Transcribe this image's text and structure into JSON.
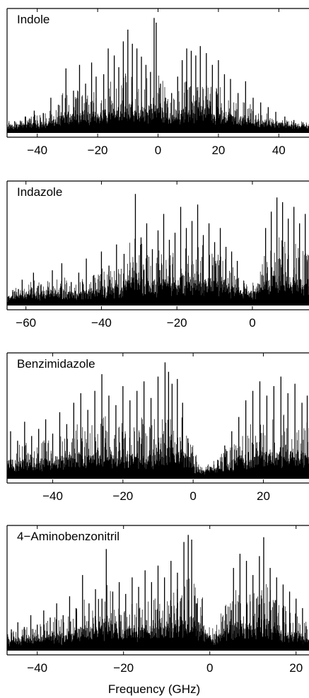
{
  "chart_data": [
    {
      "type": "line",
      "title": "Indole",
      "xlim": [
        -50,
        50
      ],
      "xticks": [
        -40,
        -20,
        0,
        20,
        40
      ],
      "xtick_labels": [
        "−40",
        "−20",
        "0",
        "20",
        "40"
      ],
      "xlabel": "",
      "grid": false,
      "peaks": [
        {
          "x": -47.5,
          "y": 0.1
        },
        {
          "x": -44,
          "y": 0.14
        },
        {
          "x": -41,
          "y": 0.19
        },
        {
          "x": -38,
          "y": 0.17
        },
        {
          "x": -35.5,
          "y": 0.3
        },
        {
          "x": -33,
          "y": 0.24
        },
        {
          "x": -30.5,
          "y": 0.55
        },
        {
          "x": -28,
          "y": 0.36
        },
        {
          "x": -26,
          "y": 0.58
        },
        {
          "x": -24,
          "y": 0.42
        },
        {
          "x": -22,
          "y": 0.6
        },
        {
          "x": -20.5,
          "y": 0.48
        },
        {
          "x": -18,
          "y": 0.5
        },
        {
          "x": -16.5,
          "y": 0.72
        },
        {
          "x": -14.5,
          "y": 0.66
        },
        {
          "x": -13,
          "y": 0.56
        },
        {
          "x": -11.5,
          "y": 0.78
        },
        {
          "x": -10,
          "y": 0.88
        },
        {
          "x": -8.5,
          "y": 0.76
        },
        {
          "x": -7,
          "y": 0.72
        },
        {
          "x": -5.5,
          "y": 0.65
        },
        {
          "x": -4,
          "y": 0.58
        },
        {
          "x": -2.5,
          "y": 0.52
        },
        {
          "x": -1.3,
          "y": 0.98
        },
        {
          "x": -0.6,
          "y": 0.94
        },
        {
          "x": 0.8,
          "y": 0.42
        },
        {
          "x": 2.5,
          "y": 0.3
        },
        {
          "x": 4.5,
          "y": 0.34
        },
        {
          "x": 6.5,
          "y": 0.48
        },
        {
          "x": 8,
          "y": 0.62
        },
        {
          "x": 9.5,
          "y": 0.72
        },
        {
          "x": 11,
          "y": 0.7
        },
        {
          "x": 12.5,
          "y": 0.66
        },
        {
          "x": 14,
          "y": 0.74
        },
        {
          "x": 16,
          "y": 0.68
        },
        {
          "x": 18,
          "y": 0.58
        },
        {
          "x": 20,
          "y": 0.62
        },
        {
          "x": 22,
          "y": 0.5
        },
        {
          "x": 24,
          "y": 0.46
        },
        {
          "x": 26.5,
          "y": 0.34
        },
        {
          "x": 29,
          "y": 0.44
        },
        {
          "x": 31.5,
          "y": 0.3
        },
        {
          "x": 34,
          "y": 0.26
        },
        {
          "x": 36.5,
          "y": 0.22
        },
        {
          "x": 39,
          "y": 0.18
        },
        {
          "x": 42,
          "y": 0.14
        },
        {
          "x": 45,
          "y": 0.11
        },
        {
          "x": 48,
          "y": 0.09
        }
      ]
    },
    {
      "type": "line",
      "title": "Indazole",
      "xlim": [
        -65,
        15
      ],
      "xticks": [
        -60,
        -40,
        -20,
        0
      ],
      "xtick_labels": [
        "−60",
        "−40",
        "−20",
        "0"
      ],
      "xlabel": "",
      "grid": false,
      "peaks": [
        {
          "x": -63,
          "y": 0.12
        },
        {
          "x": -61,
          "y": 0.22
        },
        {
          "x": -58,
          "y": 0.28
        },
        {
          "x": -56,
          "y": 0.18
        },
        {
          "x": -53,
          "y": 0.3
        },
        {
          "x": -50.5,
          "y": 0.36
        },
        {
          "x": -48,
          "y": 0.2
        },
        {
          "x": -46,
          "y": 0.28
        },
        {
          "x": -44,
          "y": 0.4
        },
        {
          "x": -42,
          "y": 0.26
        },
        {
          "x": -40,
          "y": 0.46
        },
        {
          "x": -38,
          "y": 0.34
        },
        {
          "x": -36,
          "y": 0.52
        },
        {
          "x": -34,
          "y": 0.44
        },
        {
          "x": -32.5,
          "y": 0.3
        },
        {
          "x": -31,
          "y": 0.95
        },
        {
          "x": -29.5,
          "y": 0.58
        },
        {
          "x": -28,
          "y": 0.7
        },
        {
          "x": -26.5,
          "y": 0.48
        },
        {
          "x": -25,
          "y": 0.64
        },
        {
          "x": -23.5,
          "y": 0.78
        },
        {
          "x": -22,
          "y": 0.56
        },
        {
          "x": -20.5,
          "y": 0.62
        },
        {
          "x": -19,
          "y": 0.84
        },
        {
          "x": -17.5,
          "y": 0.66
        },
        {
          "x": -16,
          "y": 0.72
        },
        {
          "x": -14.5,
          "y": 0.86
        },
        {
          "x": -13,
          "y": 0.6
        },
        {
          "x": -11.5,
          "y": 0.7
        },
        {
          "x": -10,
          "y": 0.54
        },
        {
          "x": -8.5,
          "y": 0.66
        },
        {
          "x": -7,
          "y": 0.5
        },
        {
          "x": -5.5,
          "y": 0.46
        },
        {
          "x": -4,
          "y": 0.38
        },
        {
          "x": 3.5,
          "y": 0.66
        },
        {
          "x": 5,
          "y": 0.8
        },
        {
          "x": 6.5,
          "y": 0.92
        },
        {
          "x": 8,
          "y": 0.88
        },
        {
          "x": 9.5,
          "y": 0.74
        },
        {
          "x": 11,
          "y": 0.84
        },
        {
          "x": 12.5,
          "y": 0.7
        },
        {
          "x": 14,
          "y": 0.78
        }
      ]
    },
    {
      "type": "line",
      "title": "Benzimidazole",
      "xlim": [
        -53,
        33
      ],
      "xticks": [
        -40,
        -20,
        0,
        20
      ],
      "xtick_labels": [
        "−40",
        "−20",
        "0",
        "20"
      ],
      "xlabel": "",
      "grid": false,
      "peaks": [
        {
          "x": -52,
          "y": 0.4
        },
        {
          "x": -50,
          "y": 0.32
        },
        {
          "x": -48,
          "y": 0.48
        },
        {
          "x": -46,
          "y": 0.36
        },
        {
          "x": -44,
          "y": 0.42
        },
        {
          "x": -42,
          "y": 0.5
        },
        {
          "x": -40,
          "y": 0.38
        },
        {
          "x": -38,
          "y": 0.56
        },
        {
          "x": -36,
          "y": 0.46
        },
        {
          "x": -34,
          "y": 0.64
        },
        {
          "x": -32,
          "y": 0.72
        },
        {
          "x": -30,
          "y": 0.58
        },
        {
          "x": -28,
          "y": 0.74
        },
        {
          "x": -26,
          "y": 0.88
        },
        {
          "x": -24,
          "y": 0.7
        },
        {
          "x": -22,
          "y": 0.62
        },
        {
          "x": -20,
          "y": 0.78
        },
        {
          "x": -18,
          "y": 0.66
        },
        {
          "x": -16,
          "y": 0.74
        },
        {
          "x": -14,
          "y": 0.82
        },
        {
          "x": -12,
          "y": 0.68
        },
        {
          "x": -10,
          "y": 0.86
        },
        {
          "x": -8,
          "y": 0.98
        },
        {
          "x": -7,
          "y": 0.9
        },
        {
          "x": -6,
          "y": 0.8
        },
        {
          "x": -4.5,
          "y": 0.84
        },
        {
          "x": -3,
          "y": 0.64
        },
        {
          "x": -1.5,
          "y": 0.34
        },
        {
          "x": 1,
          "y": 0.08
        },
        {
          "x": 3,
          "y": 0.06
        },
        {
          "x": 5,
          "y": 0.1
        },
        {
          "x": 7,
          "y": 0.16
        },
        {
          "x": 9,
          "y": 0.28
        },
        {
          "x": 11,
          "y": 0.4
        },
        {
          "x": 13,
          "y": 0.52
        },
        {
          "x": 15,
          "y": 0.66
        },
        {
          "x": 17,
          "y": 0.74
        },
        {
          "x": 19,
          "y": 0.82
        },
        {
          "x": 21,
          "y": 0.7
        },
        {
          "x": 23,
          "y": 0.78
        },
        {
          "x": 25,
          "y": 0.86
        },
        {
          "x": 27,
          "y": 0.72
        },
        {
          "x": 29,
          "y": 0.8
        },
        {
          "x": 31,
          "y": 0.64
        },
        {
          "x": 32.5,
          "y": 0.7
        }
      ]
    },
    {
      "type": "line",
      "title": "4−Aminobenzonitril",
      "xlim": [
        -47,
        23
      ],
      "xticks": [
        -40,
        -20,
        0,
        20
      ],
      "xtick_labels": [
        "−40",
        "−20",
        "0",
        "20"
      ],
      "xlabel": "Frequency (GHz)",
      "grid": false,
      "peaks": [
        {
          "x": -46,
          "y": 0.18
        },
        {
          "x": -44.5,
          "y": 0.24
        },
        {
          "x": -43,
          "y": 0.2
        },
        {
          "x": -41.5,
          "y": 0.3
        },
        {
          "x": -40,
          "y": 0.22
        },
        {
          "x": -38.5,
          "y": 0.34
        },
        {
          "x": -37,
          "y": 0.28
        },
        {
          "x": -35.5,
          "y": 0.4
        },
        {
          "x": -34,
          "y": 0.3
        },
        {
          "x": -32.5,
          "y": 0.46
        },
        {
          "x": -31,
          "y": 0.36
        },
        {
          "x": -29.5,
          "y": 0.64
        },
        {
          "x": -28,
          "y": 0.4
        },
        {
          "x": -26.5,
          "y": 0.52
        },
        {
          "x": -25,
          "y": 0.44
        },
        {
          "x": -24,
          "y": 0.86
        },
        {
          "x": -22.5,
          "y": 0.5
        },
        {
          "x": -21,
          "y": 0.58
        },
        {
          "x": -19.5,
          "y": 0.48
        },
        {
          "x": -18,
          "y": 0.62
        },
        {
          "x": -16.5,
          "y": 0.54
        },
        {
          "x": -15,
          "y": 0.68
        },
        {
          "x": -13.5,
          "y": 0.58
        },
        {
          "x": -12,
          "y": 0.72
        },
        {
          "x": -10.5,
          "y": 0.62
        },
        {
          "x": -9,
          "y": 0.76
        },
        {
          "x": -7.5,
          "y": 0.66
        },
        {
          "x": -6,
          "y": 0.92
        },
        {
          "x": -5,
          "y": 0.98
        },
        {
          "x": -4.2,
          "y": 0.94
        },
        {
          "x": -3,
          "y": 0.4
        },
        {
          "x": 5.5,
          "y": 0.7
        },
        {
          "x": 7,
          "y": 0.82
        },
        {
          "x": 8.5,
          "y": 0.76
        },
        {
          "x": 10,
          "y": 0.64
        },
        {
          "x": 11.5,
          "y": 0.8
        },
        {
          "x": 12.5,
          "y": 0.96
        },
        {
          "x": 14,
          "y": 0.7
        },
        {
          "x": 15.5,
          "y": 0.62
        },
        {
          "x": 17,
          "y": 0.56
        },
        {
          "x": 18.5,
          "y": 0.5
        },
        {
          "x": 20,
          "y": 0.44
        },
        {
          "x": 21.5,
          "y": 0.36
        }
      ]
    }
  ]
}
